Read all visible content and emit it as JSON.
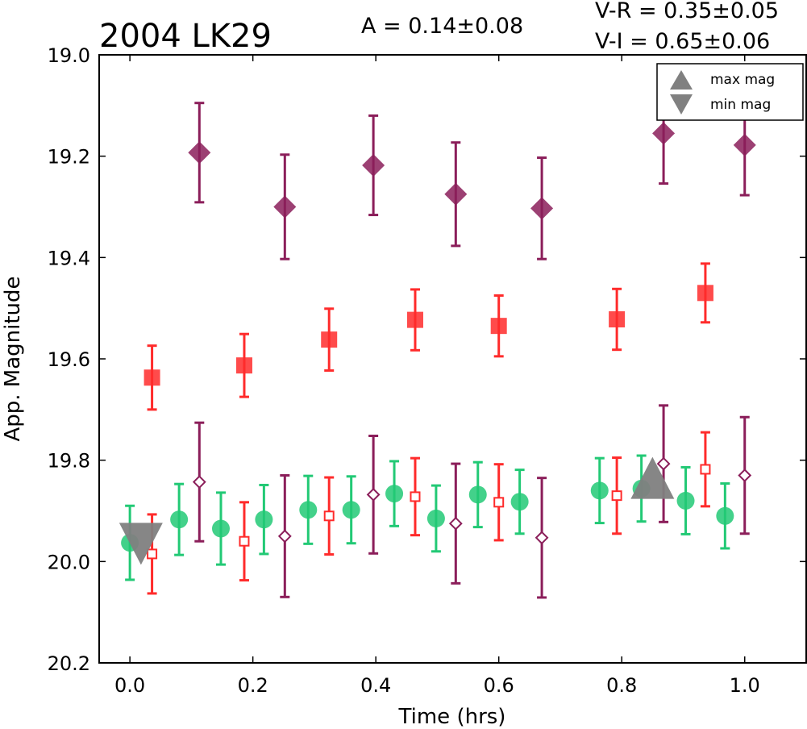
{
  "chart_data": {
    "type": "scatter",
    "title": "2004 LK29",
    "xlabel": "Time (hrs)",
    "ylabel": "App. Magnitude",
    "xlim": [
      -0.05,
      1.1
    ],
    "ylim": [
      20.2,
      19.0
    ],
    "y_inverted": true,
    "grid": false,
    "xticks": [
      "0.0",
      "0.2",
      "0.4",
      "0.6",
      "0.8",
      "1.0"
    ],
    "yticks": [
      "19.0",
      "19.2",
      "19.4",
      "19.6",
      "19.8",
      "20.0",
      "20.2"
    ],
    "annotations": {
      "amplitude": "A  = 0.14±0.08",
      "v_r": "V-R = 0.35±0.05",
      "v_i": "V-I  = 0.65±0.06"
    },
    "legend": {
      "placement": "top-right",
      "entries": [
        {
          "label": "max mag",
          "marker": "triangle-up",
          "color": "#808080"
        },
        {
          "label": "min mag",
          "marker": "triangle-down",
          "color": "#808080"
        }
      ]
    },
    "series": [
      {
        "marker": "diamond",
        "filled": true,
        "color": "#8b1e5a",
        "points": [
          {
            "x": 0.113,
            "y": 19.193,
            "err": 0.098
          },
          {
            "x": 0.252,
            "y": 19.3,
            "err": 0.103
          },
          {
            "x": 0.396,
            "y": 19.218,
            "err": 0.098
          },
          {
            "x": 0.53,
            "y": 19.275,
            "err": 0.102
          },
          {
            "x": 0.67,
            "y": 19.303,
            "err": 0.1
          },
          {
            "x": 0.868,
            "y": 19.155,
            "err": 0.099
          },
          {
            "x": 1.0,
            "y": 19.178,
            "err": 0.099
          }
        ]
      },
      {
        "marker": "square",
        "filled": true,
        "color": "#ff2b2b",
        "points": [
          {
            "x": 0.036,
            "y": 19.637,
            "err": 0.063
          },
          {
            "x": 0.186,
            "y": 19.613,
            "err": 0.062
          },
          {
            "x": 0.324,
            "y": 19.562,
            "err": 0.061
          },
          {
            "x": 0.464,
            "y": 19.523,
            "err": 0.06
          },
          {
            "x": 0.6,
            "y": 19.535,
            "err": 0.06
          },
          {
            "x": 0.792,
            "y": 19.522,
            "err": 0.06
          },
          {
            "x": 0.936,
            "y": 19.47,
            "err": 0.058
          }
        ]
      },
      {
        "marker": "circle",
        "filled": true,
        "color": "#22c975",
        "points": [
          {
            "x": 0.0,
            "y": 19.963,
            "err": 0.073
          },
          {
            "x": 0.08,
            "y": 19.917,
            "err": 0.07
          },
          {
            "x": 0.148,
            "y": 19.935,
            "err": 0.071
          },
          {
            "x": 0.218,
            "y": 19.917,
            "err": 0.068
          },
          {
            "x": 0.29,
            "y": 19.898,
            "err": 0.067
          },
          {
            "x": 0.36,
            "y": 19.898,
            "err": 0.066
          },
          {
            "x": 0.43,
            "y": 19.866,
            "err": 0.064
          },
          {
            "x": 0.498,
            "y": 19.915,
            "err": 0.065
          },
          {
            "x": 0.566,
            "y": 19.868,
            "err": 0.064
          },
          {
            "x": 0.634,
            "y": 19.882,
            "err": 0.063
          },
          {
            "x": 0.764,
            "y": 19.86,
            "err": 0.064
          },
          {
            "x": 0.832,
            "y": 19.856,
            "err": 0.065
          },
          {
            "x": 0.904,
            "y": 19.88,
            "err": 0.066
          },
          {
            "x": 0.968,
            "y": 19.91,
            "err": 0.064
          }
        ]
      },
      {
        "marker": "square",
        "filled": false,
        "color": "#ff2b2b",
        "points": [
          {
            "x": 0.036,
            "y": 19.985,
            "err": 0.078
          },
          {
            "x": 0.186,
            "y": 19.96,
            "err": 0.077
          },
          {
            "x": 0.324,
            "y": 19.91,
            "err": 0.076
          },
          {
            "x": 0.464,
            "y": 19.872,
            "err": 0.076
          },
          {
            "x": 0.6,
            "y": 19.883,
            "err": 0.075
          },
          {
            "x": 0.792,
            "y": 19.87,
            "err": 0.075
          },
          {
            "x": 0.936,
            "y": 19.818,
            "err": 0.073
          }
        ]
      },
      {
        "marker": "diamond",
        "filled": false,
        "color": "#8b1e5a",
        "points": [
          {
            "x": 0.113,
            "y": 19.843,
            "err": 0.117
          },
          {
            "x": 0.252,
            "y": 19.95,
            "err": 0.12
          },
          {
            "x": 0.396,
            "y": 19.868,
            "err": 0.116
          },
          {
            "x": 0.53,
            "y": 19.925,
            "err": 0.118
          },
          {
            "x": 0.67,
            "y": 19.953,
            "err": 0.118
          },
          {
            "x": 0.868,
            "y": 19.807,
            "err": 0.115
          },
          {
            "x": 1.0,
            "y": 19.83,
            "err": 0.115
          }
        ]
      }
    ],
    "extrema": [
      {
        "label": "max mag",
        "marker": "triangle-up",
        "x": 0.85,
        "y": 19.835,
        "color": "#808080"
      },
      {
        "label": "min mag",
        "marker": "triangle-down",
        "x": 0.018,
        "y": 19.965,
        "color": "#808080"
      }
    ]
  }
}
